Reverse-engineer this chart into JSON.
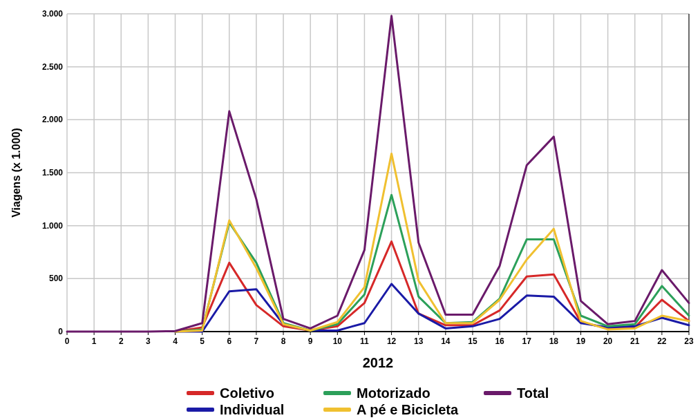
{
  "chart_data": {
    "type": "line",
    "xlabel": "2012",
    "ylabel": "Viagens (x 1.000)",
    "x": [
      0,
      1,
      2,
      3,
      4,
      5,
      6,
      7,
      8,
      9,
      10,
      11,
      12,
      13,
      14,
      15,
      16,
      17,
      18,
      19,
      20,
      21,
      22,
      23
    ],
    "xlim": [
      0,
      23
    ],
    "xticks": [
      0,
      1,
      2,
      3,
      4,
      5,
      6,
      7,
      8,
      9,
      10,
      11,
      12,
      13,
      14,
      15,
      16,
      17,
      18,
      19,
      20,
      21,
      22,
      23
    ],
    "ylim": [
      0,
      3000
    ],
    "yticks": [
      0,
      500,
      {
        "value": 1000,
        "label": "1.000"
      },
      {
        "value": 1500,
        "label": "1.500"
      },
      {
        "value": 2000,
        "label": "2.000"
      },
      {
        "value": 2500,
        "label": "2.500"
      },
      {
        "value": 3000,
        "label": "3.000"
      }
    ],
    "grid": true,
    "legend": "bottom",
    "marker": "none",
    "line_style": "solid",
    "series": [
      {
        "name": "Coletivo",
        "color": "#d62828",
        "values": [
          null,
          null,
          null,
          null,
          0,
          40,
          650,
          250,
          50,
          10,
          50,
          270,
          850,
          170,
          60,
          60,
          200,
          520,
          540,
          90,
          30,
          40,
          300,
          100
        ]
      },
      {
        "name": "Individual",
        "color": "#1a1aa6",
        "values": [
          null,
          null,
          null,
          null,
          0,
          0,
          380,
          400,
          70,
          10,
          10,
          80,
          450,
          170,
          30,
          50,
          120,
          340,
          330,
          80,
          40,
          50,
          130,
          60
        ]
      },
      {
        "name": "Motorizado",
        "color": "#2ca05a",
        "values": [
          null,
          null,
          null,
          null,
          0,
          20,
          1030,
          650,
          80,
          10,
          70,
          350,
          1290,
          330,
          80,
          90,
          310,
          870,
          870,
          150,
          50,
          70,
          430,
          150
        ]
      },
      {
        "name": "A pé e Bicicleta",
        "color": "#f0c030",
        "values": [
          null,
          null,
          null,
          null,
          0,
          10,
          1050,
          600,
          70,
          10,
          90,
          420,
          1680,
          480,
          80,
          80,
          300,
          680,
          970,
          100,
          20,
          30,
          150,
          100
        ]
      },
      {
        "name": "Total",
        "color": "#6a1a6a",
        "values": [
          0,
          0,
          0,
          0,
          5,
          80,
          2080,
          1250,
          120,
          30,
          150,
          770,
          2980,
          840,
          160,
          160,
          620,
          1570,
          1840,
          290,
          70,
          100,
          580,
          270
        ]
      }
    ]
  }
}
